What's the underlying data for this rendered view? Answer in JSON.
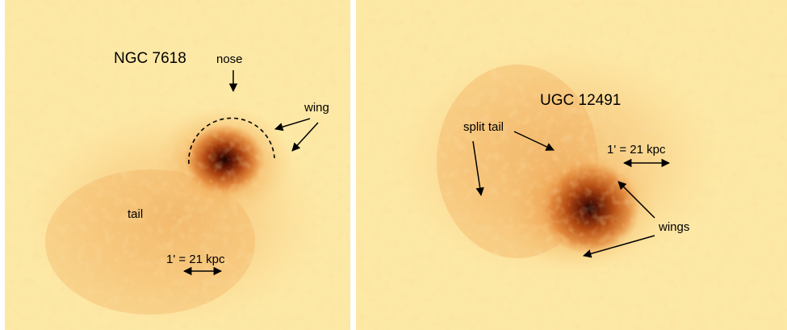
{
  "panels": [
    {
      "title": "NGC 7618",
      "labels": {
        "nose": "nose",
        "wing": "wing",
        "tail": "tail",
        "scale": "1' = 21 kpc"
      }
    },
    {
      "title": "UGC 12491",
      "labels": {
        "split_tail": "split tail",
        "wings": "wings",
        "scale": "1' = 21 kpc"
      }
    }
  ],
  "colors": {
    "background": "#fde9a6",
    "halo": "#f6b86a",
    "core": "#3a0a02",
    "annotation": "#000000"
  }
}
